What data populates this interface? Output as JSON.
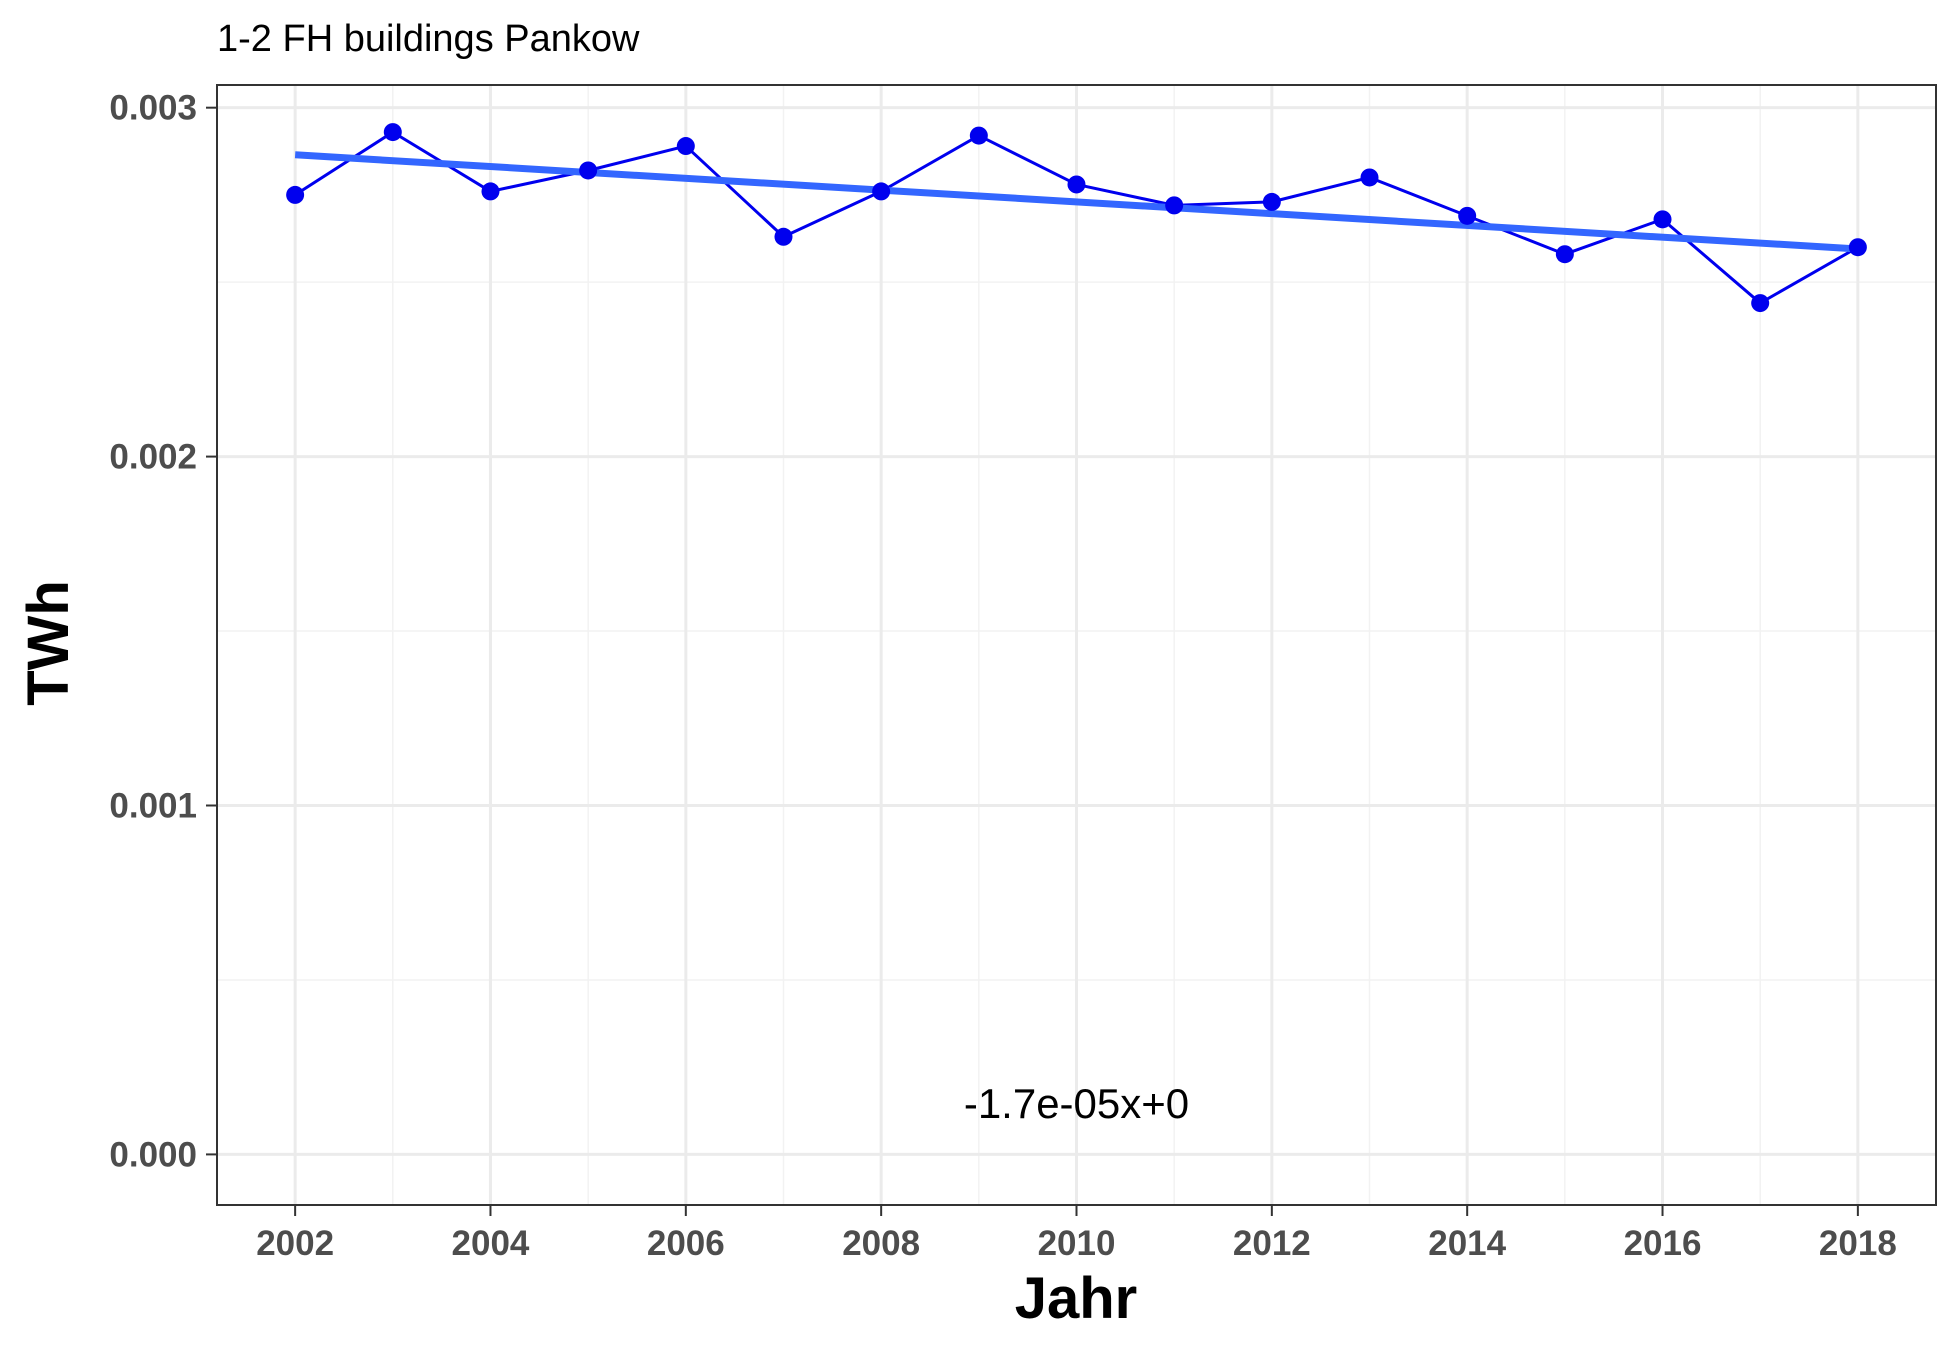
{
  "chart_data": {
    "type": "line",
    "title": "1-2 FH buildings Pankow",
    "xlabel": "Jahr",
    "ylabel": "TWh",
    "xlim": [
      2001.2,
      2018.8
    ],
    "ylim": [
      -0.000145,
      0.003065
    ],
    "x_ticks": [
      2002,
      2004,
      2006,
      2008,
      2010,
      2012,
      2014,
      2016,
      2018
    ],
    "x_tick_labels": [
      "2002",
      "2004",
      "2006",
      "2008",
      "2010",
      "2012",
      "2014",
      "2016",
      "2018"
    ],
    "y_ticks": [
      0.0,
      0.001,
      0.002,
      0.003
    ],
    "y_tick_labels": [
      "0.000",
      "0.001",
      "0.002",
      "0.003"
    ],
    "grid": true,
    "series": [
      {
        "color": "#0000ee",
        "x": [
          2002,
          2003,
          2004,
          2005,
          2006,
          2007,
          2008,
          2009,
          2010,
          2011,
          2012,
          2013,
          2014,
          2015,
          2016,
          2017,
          2018
        ],
        "y": [
          0.00275,
          0.00293,
          0.00276,
          0.00282,
          0.00289,
          0.00263,
          0.00276,
          0.00292,
          0.00278,
          0.00272,
          0.00273,
          0.0028,
          0.00269,
          0.00258,
          0.00268,
          0.00244,
          0.0026
        ]
      }
    ],
    "trend": {
      "color": "#3366ff",
      "x": [
        2002,
        2018
      ],
      "y": [
        0.002865,
        0.002595
      ]
    },
    "annotation": "-1.7e-05x+0"
  }
}
